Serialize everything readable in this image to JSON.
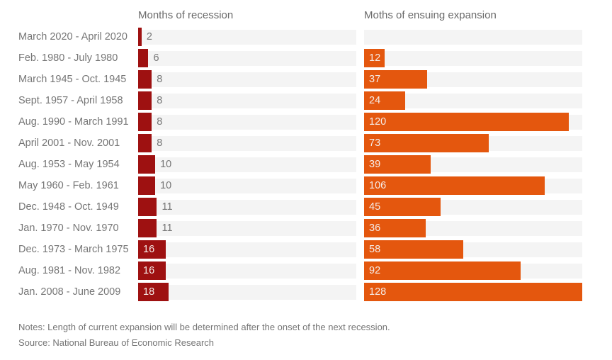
{
  "header": {
    "recession_column": "Months of recession",
    "expansion_column": "Moths of ensuing expansion"
  },
  "footer": {
    "notes": "Notes: Length of current expansion will be determined after the onset of the next recession.",
    "source": "Source: National Bureau of Economic Research"
  },
  "colors": {
    "recession_bar": "#9e1111",
    "expansion_bar": "#e4570e",
    "track_background": "#f4f4f4",
    "row_label_text": "#767676",
    "header_text": "#6a6a6a",
    "value_outside_text": "#767676",
    "value_inside_text": "#f5ece8",
    "note_text": "#757575"
  },
  "chart_data": {
    "type": "bar",
    "orientation": "horizontal",
    "title": "",
    "xlabel": "",
    "ylabel": "",
    "xlim": [
      0,
      128
    ],
    "grid": false,
    "legend_position": "column-headers",
    "categories": [
      "March 2020 - April 2020",
      "Feb. 1980 - July 1980",
      "March 1945 - Oct. 1945",
      "Sept. 1957 - April 1958",
      "Aug. 1990 - March 1991",
      "April 2001 - Nov. 2001",
      "Aug. 1953 - May 1954",
      "May 1960 - Feb. 1961",
      "Dec. 1948 - Oct. 1949",
      "Jan. 1970 - Nov. 1970",
      "Dec. 1973 - March 1975",
      "Aug. 1981 - Nov. 1982",
      "Jan. 2008 - June 2009"
    ],
    "series": [
      {
        "name": "Months of recession",
        "values": [
          2,
          6,
          8,
          8,
          8,
          8,
          10,
          10,
          11,
          11,
          16,
          16,
          18
        ]
      },
      {
        "name": "Moths of ensuing expansion",
        "values": [
          null,
          12,
          37,
          24,
          120,
          73,
          39,
          106,
          45,
          36,
          58,
          92,
          128
        ]
      }
    ]
  }
}
